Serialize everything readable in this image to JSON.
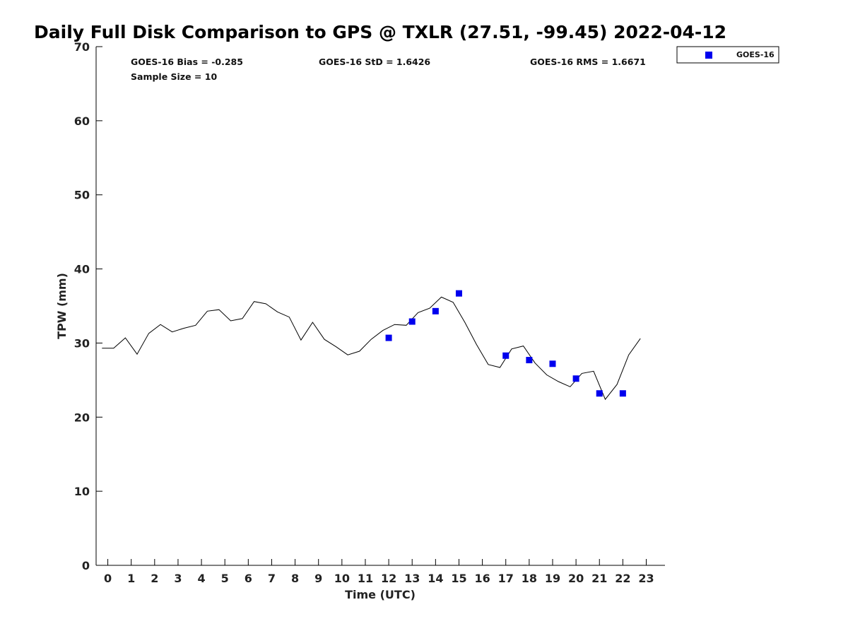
{
  "chart_data": {
    "type": "scatter",
    "title": "Daily Full Disk Comparison to GPS @ TXLR (27.51, -99.45) 2022-04-12",
    "xlabel": "Time (UTC)",
    "ylabel": "TPW (mm)",
    "xlim": [
      -0.5,
      23.8
    ],
    "ylim": [
      0,
      70
    ],
    "x_ticks": [
      0,
      1,
      2,
      3,
      4,
      5,
      6,
      7,
      8,
      9,
      10,
      11,
      12,
      13,
      14,
      15,
      16,
      17,
      18,
      19,
      20,
      21,
      22,
      23
    ],
    "y_ticks": [
      0,
      10,
      20,
      30,
      40,
      50,
      60,
      70
    ],
    "grid": false,
    "legend_placement": "top-right",
    "stats": {
      "bias": "GOES-16 Bias = -0.285",
      "std": "GOES-16 StD = 1.6426",
      "rms": "GOES-16 RMS = 1.6671",
      "sample_size": "Sample Size = 10"
    },
    "series": [
      {
        "name": "GOES-16",
        "kind": "scatter",
        "color": "#0000ee",
        "marker": "square",
        "x": [
          12,
          13,
          14,
          15,
          17,
          18,
          19,
          20,
          21,
          22
        ],
        "y": [
          30.7,
          32.9,
          34.3,
          36.7,
          28.3,
          27.7,
          27.2,
          25.2,
          23.2,
          23.2
        ]
      },
      {
        "kind": "line",
        "color": "#000000",
        "x": [
          -0.25,
          0.25,
          0.75,
          1.25,
          1.75,
          2.25,
          2.75,
          3.25,
          3.75,
          4.25,
          4.75,
          5.25,
          5.75,
          6.25,
          6.75,
          7.25,
          7.75,
          8.25,
          8.75,
          9.25,
          9.75,
          10.25,
          10.75,
          11.25,
          11.75,
          12.25,
          12.75,
          13.25,
          13.75,
          14.25,
          14.75,
          15.25,
          15.75,
          16.25,
          16.75,
          17.25,
          17.75,
          18.25,
          18.75,
          19.25,
          19.75,
          20.25,
          20.75,
          21.25,
          21.75,
          22.25,
          22.75
        ],
        "y": [
          29.3,
          29.3,
          30.7,
          28.5,
          31.3,
          32.5,
          31.5,
          32.0,
          32.4,
          34.3,
          34.5,
          33.0,
          33.3,
          35.6,
          35.3,
          34.2,
          33.5,
          30.4,
          32.8,
          30.5,
          29.5,
          28.4,
          28.9,
          30.5,
          31.7,
          32.5,
          32.4,
          34.1,
          34.7,
          36.2,
          35.5,
          32.8,
          29.8,
          27.1,
          26.7,
          29.2,
          29.6,
          27.3,
          25.7,
          24.8,
          24.1,
          25.9,
          26.2,
          22.4,
          24.4,
          28.4,
          30.6
        ]
      }
    ]
  }
}
